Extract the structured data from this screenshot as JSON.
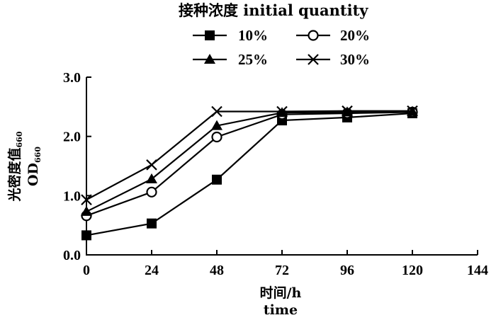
{
  "chart_data": {
    "type": "line",
    "legend_title": "接种浓度 initial quantity",
    "xlabel_line1": "时间/h",
    "xlabel_line2": "time",
    "ylabel_line1": "光密度值",
    "ylabel_line1_sub": "660",
    "ylabel_line2": "OD",
    "ylabel_line2_sub": "660",
    "xlim": [
      0,
      144
    ],
    "ylim": [
      0,
      3.0
    ],
    "xticks": [
      0,
      24,
      48,
      72,
      96,
      120,
      144
    ],
    "xtick_labels": [
      "0",
      "24",
      "48",
      "72",
      "96",
      "120",
      "144"
    ],
    "yticks": [
      0,
      1,
      2,
      3
    ],
    "ytick_labels": [
      "0.0",
      "1.0",
      "2.0",
      "3.0"
    ],
    "x": [
      0,
      24,
      48,
      72,
      96,
      120
    ],
    "grid": false,
    "legend_position": "top",
    "series": [
      {
        "name": "10%",
        "marker": "filled-square",
        "values": [
          0.33,
          0.53,
          1.27,
          2.27,
          2.32,
          2.39
        ]
      },
      {
        "name": "20%",
        "marker": "open-circle",
        "values": [
          0.66,
          1.06,
          1.99,
          2.37,
          2.39,
          2.41
        ]
      },
      {
        "name": "25%",
        "marker": "filled-triangle",
        "values": [
          0.73,
          1.28,
          2.18,
          2.4,
          2.41,
          2.42
        ]
      },
      {
        "name": "30%",
        "marker": "cross",
        "values": [
          0.93,
          1.52,
          2.42,
          2.42,
          2.43,
          2.43
        ]
      }
    ]
  }
}
